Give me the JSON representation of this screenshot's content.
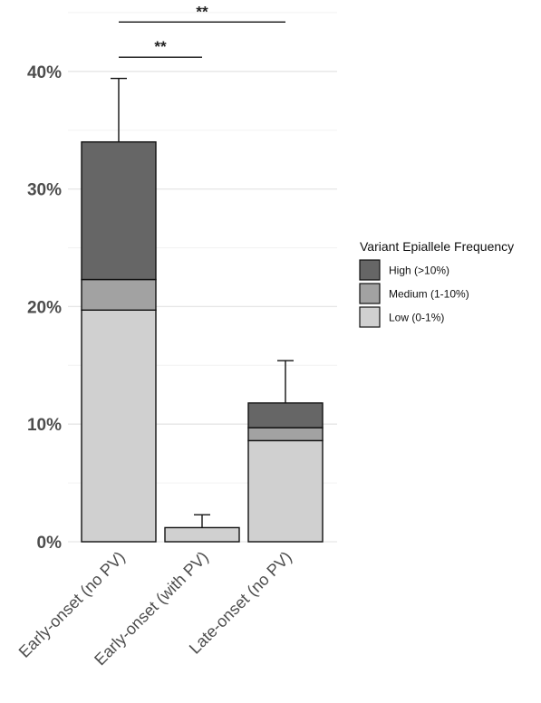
{
  "chart_data": {
    "type": "bar",
    "stacked": true,
    "categories": [
      "Early-onset (no PV)",
      "Early-onset (with PV)",
      "Late-onset (no PV)"
    ],
    "series": [
      {
        "name": "Low (0-1%)",
        "color": "#d0d0d0",
        "values": [
          19.7,
          1.2,
          8.6
        ]
      },
      {
        "name": "Medium (1-10%)",
        "color": "#a2a2a2",
        "values": [
          2.6,
          0.0,
          1.1
        ]
      },
      {
        "name": "High (>10%)",
        "color": "#666666",
        "values": [
          11.7,
          0.0,
          2.1
        ]
      }
    ],
    "error_upper": [
      39.4,
      2.3,
      15.4
    ],
    "totals": [
      34.0,
      1.2,
      11.8
    ],
    "ylim": [
      0,
      45
    ],
    "yticks": [
      0,
      10,
      20,
      30,
      40
    ],
    "ytick_labels": [
      "0%",
      "10%",
      "20%",
      "30%",
      "40%"
    ],
    "grid": true,
    "legend": {
      "title": "Variant Epiallele Frequency",
      "placement": "right",
      "items": [
        {
          "label": "High (>10%)",
          "color": "#666666"
        },
        {
          "label": "Medium (1-10%)",
          "color": "#a2a2a2"
        },
        {
          "label": "Low (0-1%)",
          "color": "#d0d0d0"
        }
      ]
    },
    "significance": [
      {
        "from": 0,
        "to": 1,
        "label": "**",
        "y": 41.2
      },
      {
        "from": 0,
        "to": 2,
        "label": "**",
        "y": 44.2
      }
    ]
  }
}
